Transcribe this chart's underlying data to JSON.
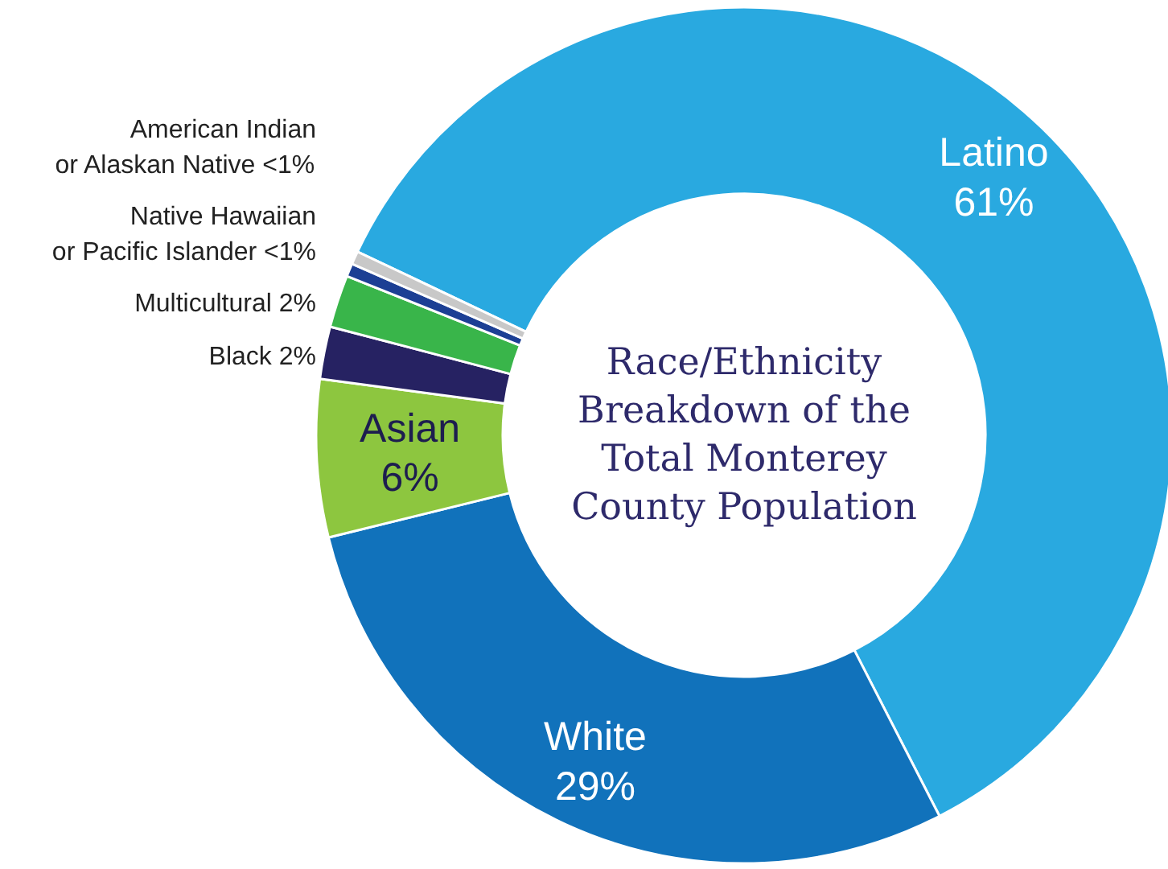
{
  "chart_data": {
    "type": "donut",
    "title": "Race/Ethnicity\nBreakdown of the\nTotal Monterey\nCounty Population",
    "categories": [
      "Latino",
      "White",
      "Asian",
      "Black",
      "Multicultural",
      "Native Hawaiian\nor Pacific Islander",
      "American Indian\nor Alaskan Native"
    ],
    "values": [
      61,
      29,
      6,
      2,
      2,
      0.5,
      0.5
    ],
    "value_labels": [
      "61%",
      "29%",
      "6%",
      "2%",
      "2%",
      "<1%",
      "<1%"
    ],
    "colors": [
      "#29a9e0",
      "#1172bb",
      "#8dc63f",
      "#262262",
      "#39b54a",
      "#1c3f94",
      "#c8c8c8"
    ]
  }
}
